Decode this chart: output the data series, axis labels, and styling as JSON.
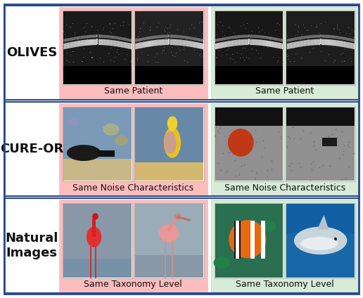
{
  "rows": [
    {
      "label": "OLIVES",
      "left_label": "Same Patient",
      "right_label": "Same Patient",
      "left_bg": "#FFBCBC",
      "right_bg": "#D6ECD6"
    },
    {
      "label": "CURE-OR",
      "left_label": "Same Noise Characteristics",
      "right_label": "Same Noise Characteristics",
      "left_bg": "#FFBCBC",
      "right_bg": "#D6ECD6"
    },
    {
      "label": "Natural\nImages",
      "left_label": "Same Taxonomy Level",
      "right_label": "Same Taxonomy Level",
      "left_bg": "#FFBCBC",
      "right_bg": "#D6ECD6"
    }
  ],
  "outer_border_color": "#2a4a8a",
  "row_border_color": "#2a4a8a",
  "label_fontsize": 13,
  "sublabel_fontsize": 9,
  "background_color": "#ffffff",
  "label_color": "#111111",
  "fig_w": 5.16,
  "fig_h": 4.24,
  "dpi": 100
}
